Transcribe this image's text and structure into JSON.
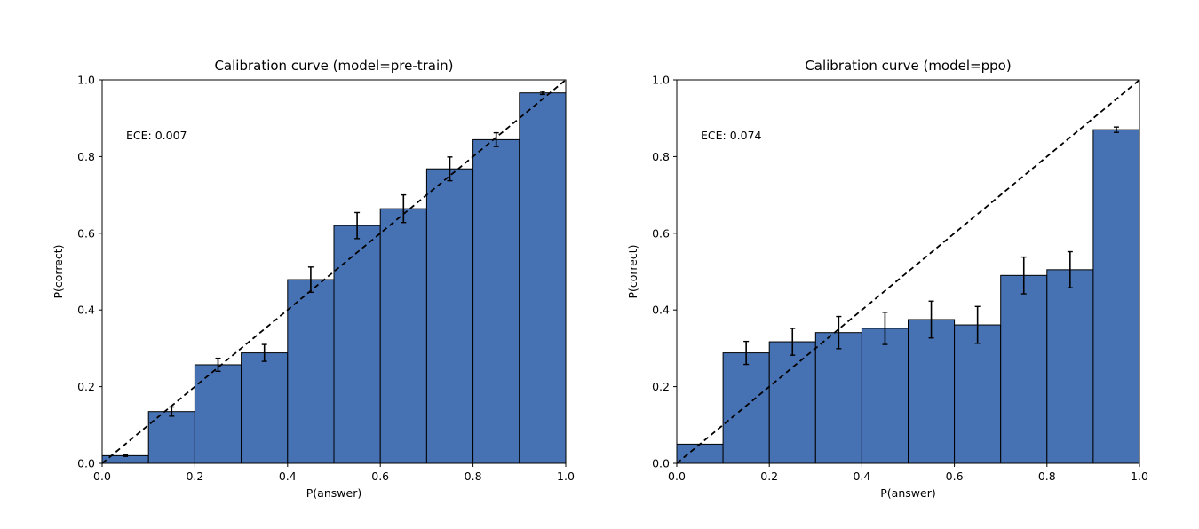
{
  "chart_data": [
    {
      "type": "bar",
      "title": "Calibration curve (model=pre-train)",
      "xlabel": "P(answer)",
      "ylabel": "P(correct)",
      "xlim": [
        0.0,
        1.0
      ],
      "ylim": [
        0.0,
        1.0
      ],
      "xticks": [
        "0.0",
        "0.2",
        "0.4",
        "0.6",
        "0.8",
        "1.0"
      ],
      "yticks": [
        "0.0",
        "0.2",
        "0.4",
        "0.6",
        "0.8",
        "1.0"
      ],
      "annotation": "ECE: 0.007",
      "bin_edges": [
        0.0,
        0.1,
        0.2,
        0.3,
        0.4,
        0.5,
        0.6,
        0.7,
        0.8,
        0.9,
        1.0
      ],
      "values": [
        0.02,
        0.135,
        0.257,
        0.288,
        0.479,
        0.62,
        0.664,
        0.768,
        0.844,
        0.966
      ],
      "errors": [
        0.002,
        0.012,
        0.017,
        0.022,
        0.033,
        0.034,
        0.036,
        0.031,
        0.018,
        0.004
      ],
      "reference_line": "diagonal",
      "bar_color": "#4672b4",
      "grid": false
    },
    {
      "type": "bar",
      "title": "Calibration curve (model=ppo)",
      "xlabel": "P(answer)",
      "ylabel": "P(correct)",
      "xlim": [
        0.0,
        1.0
      ],
      "ylim": [
        0.0,
        1.0
      ],
      "xticks": [
        "0.0",
        "0.2",
        "0.4",
        "0.6",
        "0.8",
        "1.0"
      ],
      "yticks": [
        "0.0",
        "0.2",
        "0.4",
        "0.6",
        "0.8",
        "1.0"
      ],
      "annotation": "ECE: 0.074",
      "bin_edges": [
        0.0,
        0.1,
        0.2,
        0.3,
        0.4,
        0.5,
        0.6,
        0.7,
        0.8,
        0.9,
        1.0
      ],
      "values": [
        0.05,
        0.288,
        0.317,
        0.341,
        0.352,
        0.375,
        0.361,
        0.49,
        0.505,
        0.87
      ],
      "errors": [
        0.0,
        0.03,
        0.035,
        0.042,
        0.042,
        0.048,
        0.048,
        0.048,
        0.047,
        0.007
      ],
      "reference_line": "diagonal",
      "bar_color": "#4672b4",
      "grid": false
    }
  ]
}
